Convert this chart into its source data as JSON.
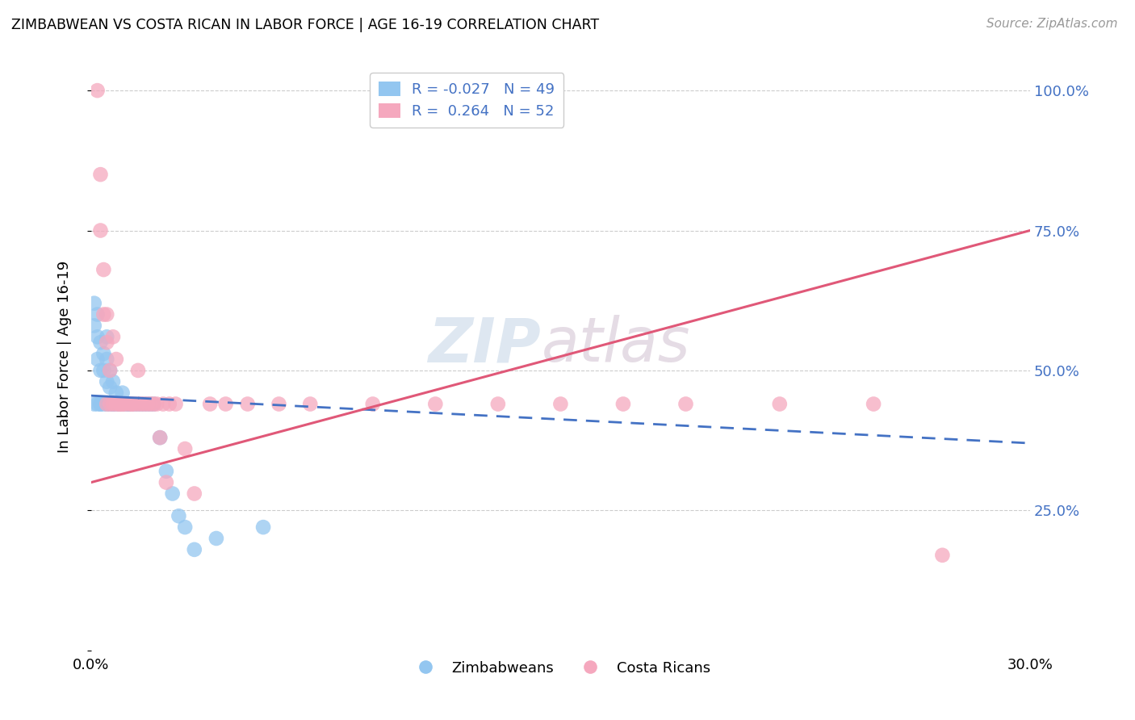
{
  "title": "ZIMBABWEAN VS COSTA RICAN IN LABOR FORCE | AGE 16-19 CORRELATION CHART",
  "source": "Source: ZipAtlas.com",
  "ylabel": "In Labor Force | Age 16-19",
  "xlim": [
    0.0,
    0.3
  ],
  "ylim": [
    0.0,
    1.05
  ],
  "blue_color": "#93C6F0",
  "pink_color": "#F5A8BE",
  "blue_line_color": "#4472C4",
  "pink_line_color": "#E05878",
  "watermark_zip_color": "#C8D8E8",
  "watermark_atlas_color": "#D0C0D0",
  "grid_color": "#CCCCCC",
  "right_tick_color": "#4472C4",
  "zim_x": [
    0.001,
    0.001,
    0.001,
    0.002,
    0.002,
    0.002,
    0.002,
    0.003,
    0.003,
    0.003,
    0.003,
    0.004,
    0.004,
    0.004,
    0.005,
    0.005,
    0.005,
    0.005,
    0.006,
    0.006,
    0.006,
    0.007,
    0.007,
    0.007,
    0.008,
    0.008,
    0.009,
    0.009,
    0.01,
    0.01,
    0.011,
    0.012,
    0.012,
    0.013,
    0.014,
    0.015,
    0.016,
    0.017,
    0.018,
    0.019,
    0.02,
    0.022,
    0.024,
    0.026,
    0.028,
    0.03,
    0.033,
    0.04,
    0.055
  ],
  "zim_y": [
    0.62,
    0.58,
    0.44,
    0.6,
    0.56,
    0.52,
    0.44,
    0.55,
    0.5,
    0.44,
    0.44,
    0.53,
    0.5,
    0.44,
    0.56,
    0.52,
    0.48,
    0.44,
    0.5,
    0.47,
    0.44,
    0.48,
    0.44,
    0.44,
    0.46,
    0.44,
    0.44,
    0.44,
    0.46,
    0.44,
    0.44,
    0.44,
    0.44,
    0.44,
    0.44,
    0.44,
    0.44,
    0.44,
    0.44,
    0.44,
    0.44,
    0.38,
    0.32,
    0.28,
    0.24,
    0.22,
    0.18,
    0.2,
    0.22
  ],
  "cr_x": [
    0.002,
    0.003,
    0.003,
    0.004,
    0.004,
    0.005,
    0.005,
    0.005,
    0.006,
    0.006,
    0.007,
    0.007,
    0.008,
    0.008,
    0.009,
    0.009,
    0.01,
    0.01,
    0.011,
    0.012,
    0.013,
    0.013,
    0.014,
    0.015,
    0.015,
    0.016,
    0.017,
    0.018,
    0.019,
    0.02,
    0.021,
    0.022,
    0.023,
    0.024,
    0.025,
    0.027,
    0.03,
    0.033,
    0.038,
    0.043,
    0.05,
    0.06,
    0.07,
    0.09,
    0.11,
    0.13,
    0.15,
    0.17,
    0.19,
    0.22,
    0.25,
    0.272
  ],
  "cr_y": [
    1.0,
    0.85,
    0.75,
    0.68,
    0.6,
    0.6,
    0.55,
    0.44,
    0.5,
    0.44,
    0.56,
    0.44,
    0.52,
    0.44,
    0.44,
    0.44,
    0.44,
    0.44,
    0.44,
    0.44,
    0.44,
    0.44,
    0.44,
    0.5,
    0.44,
    0.44,
    0.44,
    0.44,
    0.44,
    0.44,
    0.44,
    0.38,
    0.44,
    0.3,
    0.44,
    0.44,
    0.36,
    0.28,
    0.44,
    0.44,
    0.44,
    0.44,
    0.44,
    0.44,
    0.44,
    0.44,
    0.44,
    0.44,
    0.44,
    0.44,
    0.44,
    0.17
  ],
  "blue_line_x": [
    0.0,
    0.3
  ],
  "blue_line_y": [
    0.455,
    0.37
  ],
  "pink_line_x": [
    0.0,
    0.3
  ],
  "pink_line_y": [
    0.3,
    0.75
  ]
}
